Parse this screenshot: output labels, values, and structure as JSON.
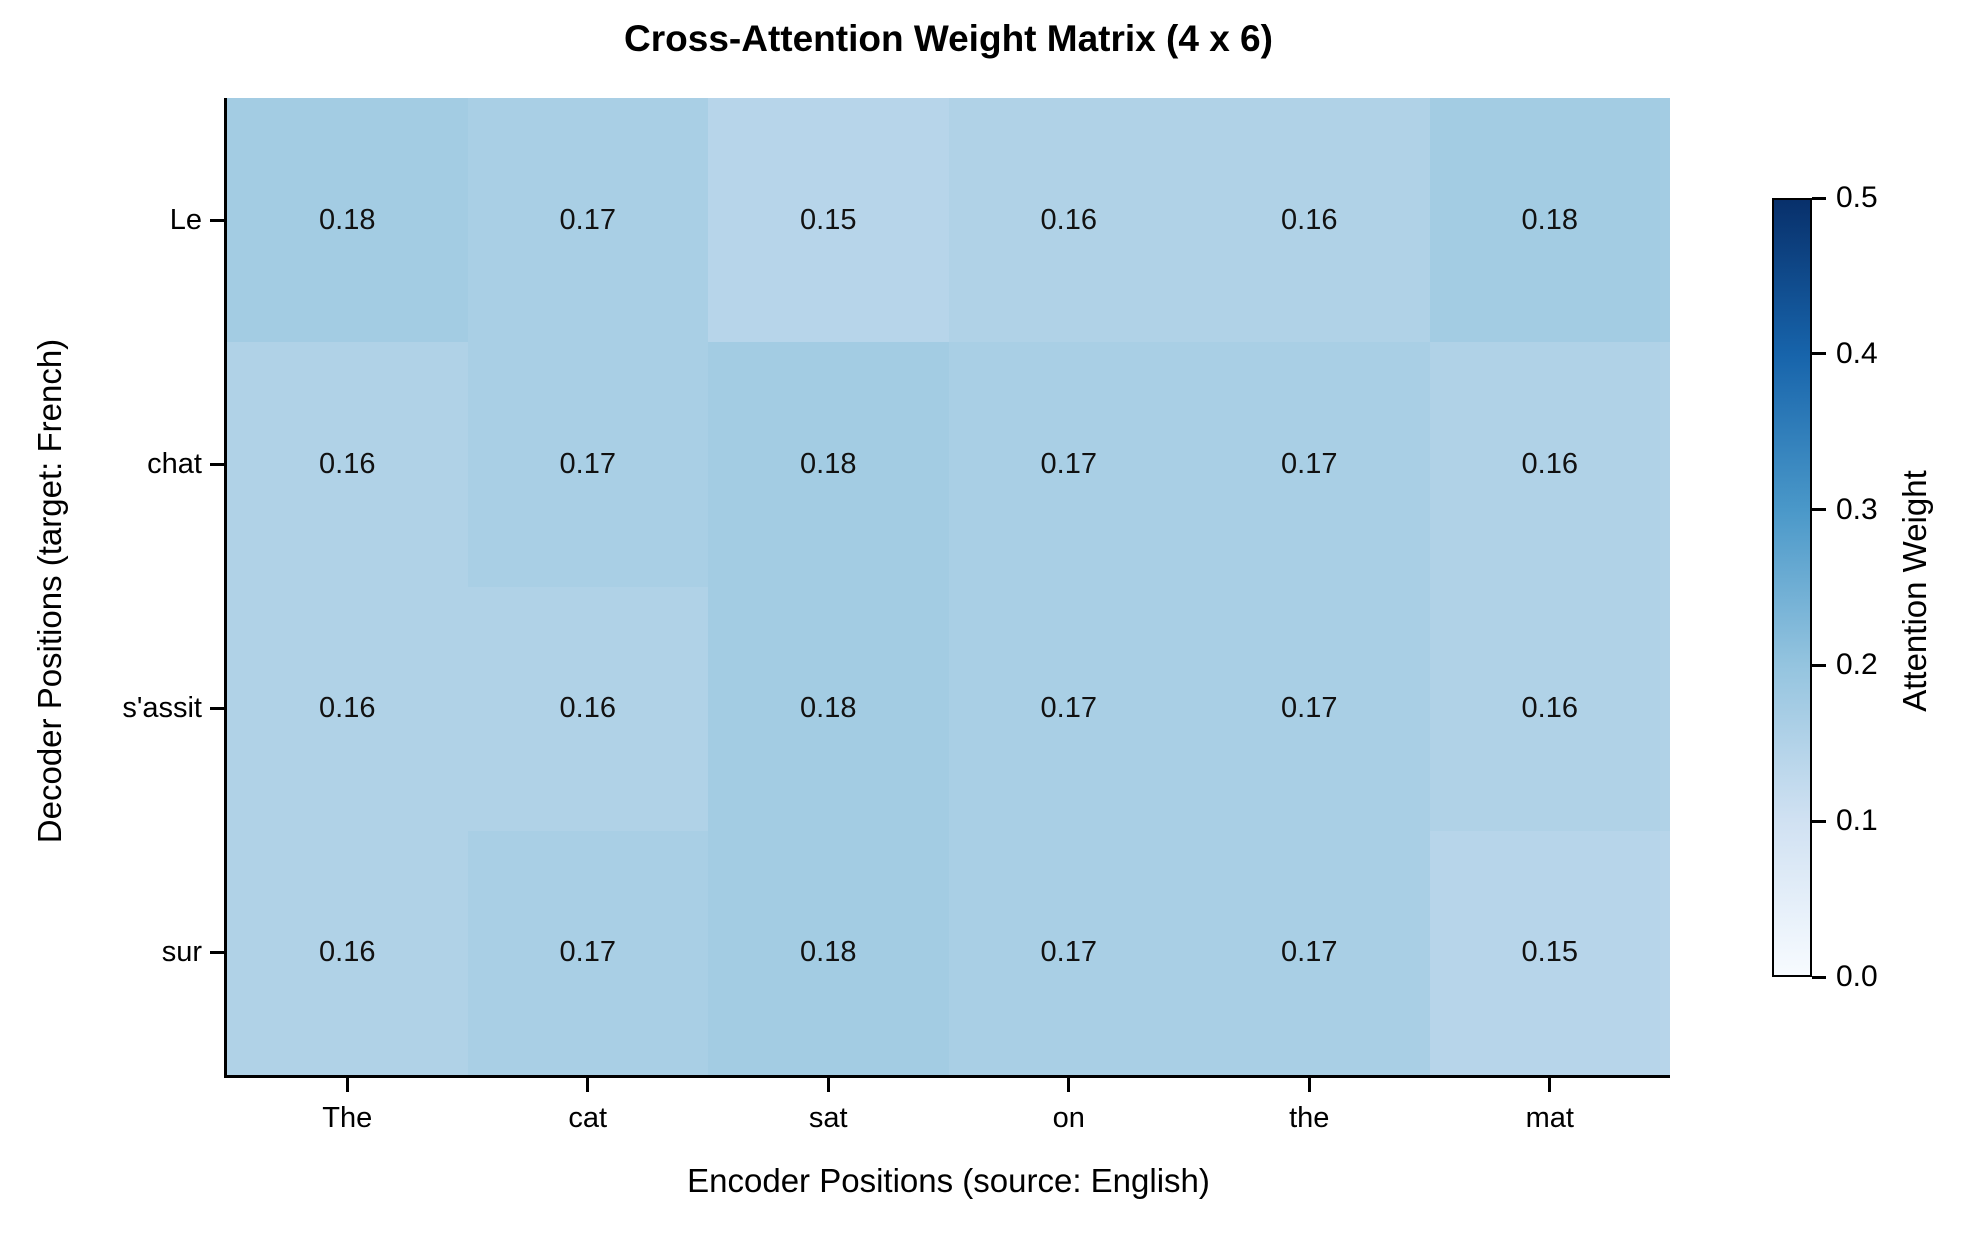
{
  "chart_data": {
    "type": "heatmap",
    "title": "Cross-Attention Weight Matrix (4 x 6)",
    "xlabel": "Encoder Positions (source: English)",
    "ylabel": "Decoder Positions (target: French)",
    "x_categories": [
      "The",
      "cat",
      "sat",
      "on",
      "the",
      "mat"
    ],
    "y_categories": [
      "Le",
      "chat",
      "s'assit",
      "sur"
    ],
    "values": [
      [
        0.18,
        0.17,
        0.15,
        0.16,
        0.16,
        0.18
      ],
      [
        0.16,
        0.17,
        0.18,
        0.17,
        0.17,
        0.16
      ],
      [
        0.16,
        0.16,
        0.18,
        0.17,
        0.17,
        0.16
      ],
      [
        0.16,
        0.17,
        0.18,
        0.17,
        0.17,
        0.15
      ]
    ],
    "cell_colors": {
      "0.15": "#b7d5ea",
      "0.16": "#b0d2e7",
      "0.17": "#a9cfe5",
      "0.18": "#a3cce3"
    },
    "colorbar": {
      "label": "Attention Weight",
      "ticks_top_to_bottom": [
        "0.5",
        "0.4",
        "0.3",
        "0.2",
        "0.1",
        "0.0"
      ],
      "vmin": 0.0,
      "vmax": 0.5,
      "colormap": "Blues",
      "gradient_bottom_to_top": [
        "#f7fbff",
        "#d0e1f2",
        "#94c4df",
        "#4a98c9",
        "#1764ab",
        "#08306b"
      ]
    },
    "grid": "off",
    "legend": "colorbar-right",
    "background": "#ffffff",
    "axis_color": "#000000",
    "annotation_color": "#111111"
  }
}
